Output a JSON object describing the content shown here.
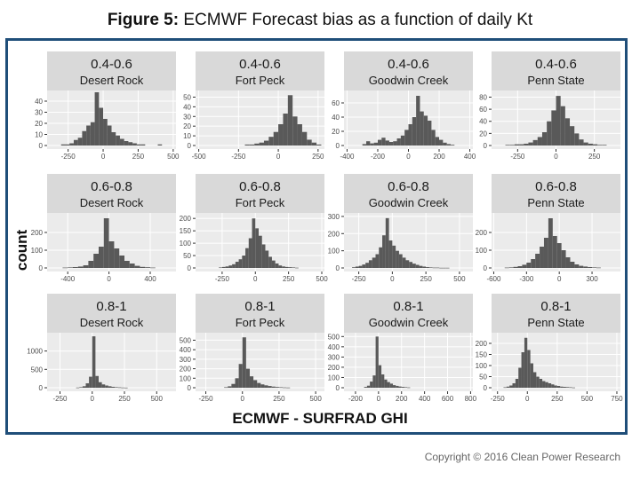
{
  "figure": {
    "title_bold": "Figure 5:",
    "title_rest": " ECMWF Forecast bias as a function of daily Kt",
    "copyright": "Copyright © 2016 Clean Power Research"
  },
  "chart_data": {
    "type": "histogram-grid",
    "xlabel": "ECMWF - SURFRAD  GHI",
    "ylabel": "count",
    "colors": {
      "bar": "#595959",
      "strip": "#d9d9d9",
      "panel_bg": "#ebebeb",
      "grid": "#ffffff",
      "frame": "#1f4e79"
    },
    "panels": [
      {
        "kt": "0.4-0.6",
        "site": "Desert Rock",
        "xlim": [
          -400,
          520
        ],
        "xticks": [
          -250,
          0,
          250,
          500
        ],
        "ylim": [
          0,
          48
        ],
        "yticks": [
          0,
          10,
          20,
          30,
          40
        ],
        "bin_width": 30,
        "bin_start": -300,
        "counts": [
          1,
          1,
          2,
          5,
          7,
          13,
          18,
          21,
          48,
          34,
          24,
          18,
          12,
          9,
          6,
          4,
          3,
          2,
          1,
          1,
          0,
          0,
          0,
          1
        ]
      },
      {
        "kt": "0.4-0.6",
        "site": "Fort Peck",
        "xlim": [
          -520,
          290
        ],
        "xticks": [
          -500,
          -250,
          0,
          250
        ],
        "ylim": [
          0,
          55
        ],
        "yticks": [
          0,
          10,
          20,
          30,
          40,
          50
        ],
        "bin_width": 30,
        "bin_start": -210,
        "counts": [
          1,
          1,
          2,
          3,
          5,
          9,
          14,
          22,
          33,
          52,
          30,
          22,
          14,
          6,
          3,
          1
        ]
      },
      {
        "kt": "0.4-0.6",
        "site": "Goodwin Creek",
        "xlim": [
          -420,
          420
        ],
        "xticks": [
          -400,
          -200,
          0,
          200,
          400
        ],
        "ylim": [
          0,
          75
        ],
        "yticks": [
          0,
          20,
          40,
          60
        ],
        "bin_width": 25,
        "bin_start": -300,
        "counts": [
          2,
          6,
          3,
          4,
          8,
          11,
          7,
          5,
          6,
          10,
          14,
          22,
          30,
          40,
          70,
          48,
          42,
          35,
          22,
          12,
          8,
          4,
          2,
          1
        ]
      },
      {
        "kt": "0.4-0.6",
        "site": "Penn State",
        "xlim": [
          -420,
          420
        ],
        "xticks": [
          -250,
          0,
          250
        ],
        "ylim": [
          0,
          88
        ],
        "yticks": [
          0,
          20,
          40,
          60,
          80
        ],
        "bin_width": 30,
        "bin_start": -330,
        "counts": [
          1,
          1,
          2,
          2,
          3,
          5,
          9,
          14,
          22,
          40,
          58,
          82,
          65,
          45,
          32,
          20,
          10,
          5,
          3,
          2,
          1,
          1
        ]
      },
      {
        "kt": "0.6-0.8",
        "site": "Desert Rock",
        "xlim": [
          -600,
          650
        ],
        "xticks": [
          -400,
          0,
          400
        ],
        "ylim": [
          0,
          300
        ],
        "yticks": [
          0,
          100,
          200
        ],
        "bin_width": 50,
        "bin_start": -450,
        "counts": [
          2,
          3,
          5,
          8,
          15,
          40,
          80,
          120,
          280,
          150,
          110,
          70,
          40,
          25,
          12,
          6,
          4,
          2
        ]
      },
      {
        "kt": "0.6-0.8",
        "site": "Fort Peck",
        "xlim": [
          -450,
          520
        ],
        "xticks": [
          -250,
          0,
          250,
          500
        ],
        "ylim": [
          0,
          215
        ],
        "yticks": [
          0,
          50,
          100,
          150,
          200
        ],
        "bin_width": 25,
        "bin_start": -275,
        "counts": [
          2,
          4,
          6,
          10,
          15,
          25,
          35,
          50,
          80,
          120,
          200,
          160,
          130,
          95,
          70,
          45,
          30,
          18,
          10,
          6,
          4,
          3,
          2,
          1
        ]
      },
      {
        "kt": "0.6-0.8",
        "site": "Goodwin Creek",
        "xlim": [
          -360,
          600
        ],
        "xticks": [
          -250,
          0,
          250,
          500
        ],
        "ylim": [
          0,
          310
        ],
        "yticks": [
          0,
          100,
          200,
          300
        ],
        "bin_width": 25,
        "bin_start": -300,
        "counts": [
          4,
          8,
          12,
          20,
          30,
          45,
          60,
          80,
          120,
          190,
          290,
          160,
          130,
          100,
          80,
          60,
          45,
          35,
          25,
          18,
          12,
          8,
          5,
          3,
          2,
          2,
          1,
          1,
          1
        ]
      },
      {
        "kt": "0.6-0.8",
        "site": "Penn State",
        "xlim": [
          -620,
          560
        ],
        "xticks": [
          -600,
          -300,
          0,
          300
        ],
        "ylim": [
          0,
          300
        ],
        "yticks": [
          0,
          100,
          200
        ],
        "bin_width": 40,
        "bin_start": -500,
        "counts": [
          2,
          3,
          6,
          10,
          18,
          30,
          50,
          80,
          120,
          170,
          280,
          180,
          140,
          100,
          60,
          35,
          20,
          12,
          8,
          5,
          3,
          2
        ]
      },
      {
        "kt": "0.8-1",
        "site": "Desert Rock",
        "xlim": [
          -350,
          650
        ],
        "xticks": [
          -250,
          0,
          250,
          500
        ],
        "ylim": [
          0,
          1450
        ],
        "yticks": [
          0,
          500,
          1000
        ],
        "bin_width": 25,
        "bin_start": -125,
        "counts": [
          5,
          15,
          40,
          120,
          300,
          1400,
          320,
          150,
          90,
          60,
          40,
          25,
          15,
          10,
          5,
          3
        ]
      },
      {
        "kt": "0.8-1",
        "site": "Fort Peck",
        "xlim": [
          -320,
          560
        ],
        "xticks": [
          -250,
          0,
          250,
          500
        ],
        "ylim": [
          0,
          560
        ],
        "yticks": [
          0,
          100,
          200,
          300,
          400,
          500
        ],
        "bin_width": 25,
        "bin_start": -125,
        "counts": [
          5,
          15,
          40,
          100,
          250,
          530,
          200,
          120,
          80,
          50,
          35,
          25,
          18,
          12,
          8,
          5,
          3,
          2
        ]
      },
      {
        "kt": "0.8-1",
        "site": "Goodwin Creek",
        "xlim": [
          -300,
          820
        ],
        "xticks": [
          -200,
          0,
          200,
          400,
          600,
          800
        ],
        "ylim": [
          0,
          520
        ],
        "yticks": [
          0,
          100,
          200,
          300,
          400,
          500
        ],
        "bin_width": 25,
        "bin_start": -125,
        "counts": [
          8,
          20,
          60,
          120,
          500,
          220,
          130,
          80,
          55,
          40,
          25,
          18,
          12,
          8,
          5,
          3
        ]
      },
      {
        "kt": "0.8-1",
        "site": "Penn State",
        "xlim": [
          -300,
          780
        ],
        "xticks": [
          -250,
          0,
          250,
          500,
          750
        ],
        "ylim": [
          0,
          240
        ],
        "yticks": [
          0,
          50,
          100,
          150,
          200
        ],
        "bin_width": 25,
        "bin_start": -200,
        "counts": [
          2,
          5,
          10,
          20,
          40,
          90,
          160,
          225,
          170,
          110,
          70,
          50,
          40,
          30,
          25,
          20,
          15,
          10,
          8,
          5,
          4,
          3,
          2,
          1
        ]
      }
    ]
  }
}
